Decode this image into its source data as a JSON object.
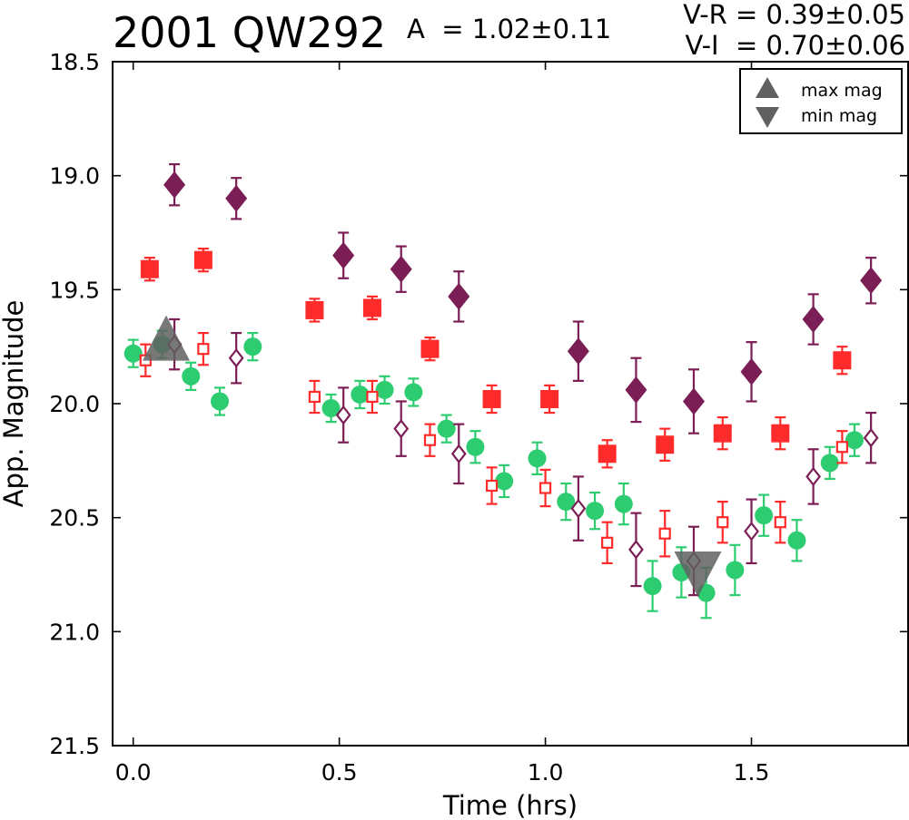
{
  "header": {
    "object": "2001 QW292",
    "amplitude": "A  = 1.02±0.11",
    "v_r": "V-R = 0.39±0.05",
    "v_i": "V-I  = 0.70±0.06"
  },
  "chart_data": {
    "type": "scatter",
    "title": "2001 QW292",
    "xlabel": "Time (hrs)",
    "ylabel": "App. Magnitude",
    "xlim": [
      -0.05,
      1.88
    ],
    "ylim": [
      21.5,
      18.5
    ],
    "y_inverted": true,
    "xticks": [
      "0.0",
      "0.5",
      "1.0",
      "1.5"
    ],
    "xtick_values": [
      0.0,
      0.5,
      1.0,
      1.5
    ],
    "yticks": [
      "18.5",
      "19.0",
      "19.5",
      "20.0",
      "20.5",
      "21.0",
      "21.5"
    ],
    "ytick_values": [
      18.5,
      19.0,
      19.5,
      20.0,
      20.5,
      21.0,
      21.5
    ],
    "grid": false,
    "legend_position": "top-right",
    "legend": [
      {
        "label": "max mag",
        "marker": "triangle-up"
      },
      {
        "label": "min mag",
        "marker": "triangle-down"
      }
    ],
    "colors": {
      "green": "#2ecc71",
      "red": "#ff2a2a",
      "purple": "#7b1e55",
      "extrema": "#606060"
    },
    "series": [
      {
        "marker": "circle",
        "color": "#2ecc71",
        "filled": true,
        "points": [
          [
            0.0,
            19.78,
            0.06
          ],
          [
            0.07,
            19.74,
            0.06
          ],
          [
            0.14,
            19.88,
            0.06
          ],
          [
            0.21,
            19.99,
            0.06
          ],
          [
            0.29,
            19.75,
            0.06
          ],
          [
            0.48,
            20.02,
            0.06
          ],
          [
            0.55,
            19.96,
            0.06
          ],
          [
            0.61,
            19.94,
            0.06
          ],
          [
            0.68,
            19.95,
            0.06
          ],
          [
            0.76,
            20.11,
            0.06
          ],
          [
            0.83,
            20.19,
            0.07
          ],
          [
            0.9,
            20.34,
            0.07
          ],
          [
            0.98,
            20.24,
            0.07
          ],
          [
            1.05,
            20.43,
            0.08
          ],
          [
            1.12,
            20.47,
            0.08
          ],
          [
            1.19,
            20.44,
            0.09
          ],
          [
            1.26,
            20.8,
            0.11
          ],
          [
            1.33,
            20.74,
            0.11
          ],
          [
            1.39,
            20.83,
            0.11
          ],
          [
            1.46,
            20.73,
            0.11
          ],
          [
            1.53,
            20.49,
            0.09
          ],
          [
            1.61,
            20.6,
            0.09
          ],
          [
            1.69,
            20.26,
            0.07
          ],
          [
            1.75,
            20.16,
            0.07
          ]
        ]
      },
      {
        "marker": "square",
        "color": "#ff2a2a",
        "filled": true,
        "points": [
          [
            0.04,
            19.41,
            0.05
          ],
          [
            0.17,
            19.37,
            0.05
          ],
          [
            0.44,
            19.59,
            0.05
          ],
          [
            0.58,
            19.58,
            0.05
          ],
          [
            0.72,
            19.76,
            0.05
          ],
          [
            0.87,
            19.98,
            0.06
          ],
          [
            1.01,
            19.98,
            0.06
          ],
          [
            1.15,
            20.22,
            0.06
          ],
          [
            1.29,
            20.18,
            0.07
          ],
          [
            1.43,
            20.13,
            0.07
          ],
          [
            1.57,
            20.13,
            0.07
          ],
          [
            1.72,
            19.81,
            0.06
          ]
        ]
      },
      {
        "marker": "square",
        "color": "#ff2a2a",
        "filled": false,
        "points": [
          [
            0.03,
            19.81,
            0.07
          ],
          [
            0.17,
            19.76,
            0.07
          ],
          [
            0.44,
            19.97,
            0.07
          ],
          [
            0.58,
            19.97,
            0.07
          ],
          [
            0.72,
            20.16,
            0.07
          ],
          [
            0.87,
            20.36,
            0.08
          ],
          [
            1.0,
            20.37,
            0.08
          ],
          [
            1.15,
            20.61,
            0.09
          ],
          [
            1.29,
            20.57,
            0.1
          ],
          [
            1.43,
            20.52,
            0.09
          ],
          [
            1.57,
            20.52,
            0.09
          ],
          [
            1.72,
            20.19,
            0.07
          ]
        ]
      },
      {
        "marker": "diamond",
        "color": "#7b1e55",
        "filled": true,
        "points": [
          [
            0.1,
            19.04,
            0.09
          ],
          [
            0.25,
            19.1,
            0.09
          ],
          [
            0.51,
            19.35,
            0.1
          ],
          [
            0.65,
            19.41,
            0.1
          ],
          [
            0.79,
            19.53,
            0.11
          ],
          [
            1.08,
            19.77,
            0.13
          ],
          [
            1.22,
            19.94,
            0.14
          ],
          [
            1.36,
            19.99,
            0.14
          ],
          [
            1.5,
            19.86,
            0.13
          ],
          [
            1.65,
            19.63,
            0.11
          ],
          [
            1.79,
            19.46,
            0.1
          ]
        ]
      },
      {
        "marker": "diamond",
        "color": "#7b1e55",
        "filled": false,
        "points": [
          [
            0.1,
            19.74,
            0.11
          ],
          [
            0.25,
            19.8,
            0.11
          ],
          [
            0.51,
            20.05,
            0.12
          ],
          [
            0.65,
            20.11,
            0.12
          ],
          [
            0.79,
            20.22,
            0.13
          ],
          [
            1.08,
            20.46,
            0.14
          ],
          [
            1.22,
            20.64,
            0.16
          ],
          [
            1.36,
            20.69,
            0.15
          ],
          [
            1.5,
            20.56,
            0.14
          ],
          [
            1.65,
            20.32,
            0.12
          ],
          [
            1.79,
            20.15,
            0.11
          ]
        ]
      },
      {
        "name": "max mag",
        "marker": "triangle-up",
        "color": "#606060",
        "filled": true,
        "points": [
          [
            0.08,
            19.74,
            0.0
          ]
        ]
      },
      {
        "name": "min mag",
        "marker": "triangle-down",
        "color": "#606060",
        "filled": true,
        "points": [
          [
            1.37,
            20.72,
            0.0
          ]
        ]
      }
    ]
  }
}
